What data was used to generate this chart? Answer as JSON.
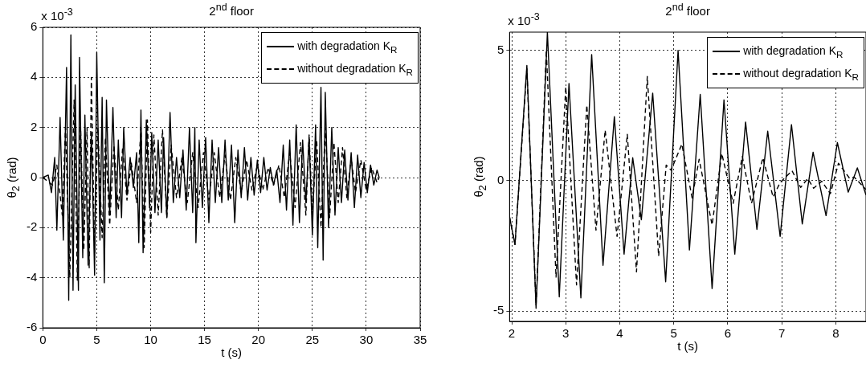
{
  "chart_data": [
    {
      "type": "line",
      "title": "2$^{nd}$ floor",
      "xlabel": "t (s)",
      "ylabel": "θ$_{2}$ (rad)",
      "annotations": [
        "x 10$^{-3}$"
      ],
      "xlim": [
        0,
        35
      ],
      "ylim": [
        -6,
        6
      ],
      "xticks": [
        0,
        5,
        10,
        15,
        20,
        25,
        30,
        35
      ],
      "yticks": [
        -6,
        -4,
        -2,
        0,
        2,
        4,
        6
      ],
      "grid": true,
      "legend": "top right",
      "series": [
        {
          "name": "with degradation K$_{R}$",
          "color": "#000000",
          "line_style": "solid",
          "x": [
            0,
            0.5,
            0.8,
            1.1,
            1.3,
            1.6,
            1.9,
            2.2,
            2.4,
            2.6,
            2.8,
            3.0,
            3.3,
            3.4,
            3.7,
            3.9,
            4.2,
            4.5,
            4.8,
            5.0,
            5.3,
            5.5,
            5.7,
            5.9,
            6.2,
            6.5,
            6.8,
            7.0,
            7.3,
            7.5,
            7.8,
            8.1,
            8.4,
            8.7,
            8.9,
            9.1,
            9.3,
            9.6,
            9.9,
            10.1,
            10.4,
            10.7,
            11.0,
            11.2,
            11.5,
            11.8,
            12.1,
            12.4,
            12.7,
            13.0,
            13.3,
            13.6,
            13.9,
            14.1,
            14.2,
            14.5,
            14.8,
            15.1,
            15.4,
            15.7,
            16.0,
            16.3,
            16.6,
            16.9,
            17.2,
            17.5,
            17.8,
            18.1,
            18.4,
            18.7,
            19.0,
            19.3,
            19.6,
            19.9,
            20.2,
            20.5,
            20.8,
            21.1,
            21.4,
            21.7,
            22.0,
            22.3,
            22.6,
            22.9,
            23.2,
            23.5,
            23.8,
            24.1,
            24.4,
            24.7,
            25.0,
            25.3,
            25.5,
            25.8,
            26.0,
            26.2,
            26.5,
            26.8,
            27.1,
            27.4,
            27.7,
            28.0,
            28.3,
            28.6,
            28.9,
            29.2,
            29.5,
            29.8,
            30.1,
            30.4,
            30.7,
            31.0,
            31.2
          ],
          "values": [
            0,
            0.1,
            -0.6,
            0.8,
            -2.1,
            2.4,
            -2.5,
            4.4,
            -4.9,
            5.7,
            -4.5,
            3.7,
            -4.5,
            4.8,
            -3.2,
            2.5,
            -3.5,
            1.8,
            -3.9,
            5.0,
            -2.5,
            3.2,
            -4.2,
            3.1,
            -1.5,
            2.8,
            -1.6,
            1.5,
            -1.6,
            2.0,
            -0.7,
            0.8,
            -0.4,
            1.0,
            -2.6,
            2.7,
            -3.0,
            2.3,
            -1.2,
            1.8,
            -1.4,
            1.5,
            -1.4,
            1.6,
            -1.6,
            2.6,
            -1.0,
            0.8,
            -0.8,
            1.1,
            -1.3,
            2.0,
            -1.4,
            2.0,
            -2.6,
            1.5,
            -1.2,
            1.6,
            -1.8,
            1.5,
            -1.0,
            1.2,
            -1.0,
            1.5,
            -0.9,
            1.3,
            -1.8,
            1.1,
            -0.8,
            1.2,
            -0.9,
            0.8,
            -0.7,
            0.7,
            -0.6,
            0.8,
            -0.5,
            0.4,
            -0.3,
            0.3,
            -1.0,
            1.3,
            -1.3,
            1.5,
            -1.9,
            2.1,
            -1.8,
            1.5,
            -1.0,
            1.6,
            -2.3,
            2.1,
            -2.8,
            3.6,
            -3.3,
            3.4,
            -2.0,
            2.0,
            -1.5,
            1.2,
            -1.0,
            1.1,
            -0.9,
            1.0,
            -1.2,
            0.9,
            -0.8,
            0.6,
            -0.6,
            0.5,
            -0.3,
            0.3,
            0
          ]
        },
        {
          "name": "without degradation K$_{R}$",
          "color": "#000000",
          "line_style": "dashed",
          "x": [
            0,
            0.9,
            1.3,
            1.8,
            2.1,
            2.5,
            2.9,
            3.2,
            3.5,
            3.8,
            4.1,
            4.3,
            4.5,
            4.8,
            5.1,
            5.5,
            5.8,
            6.2,
            6.6,
            7.0,
            7.4,
            7.8,
            8.2,
            8.7,
            9.1,
            9.4,
            9.7,
            10.0,
            10.3,
            10.7,
            11.1,
            11.5,
            11.9,
            12.4,
            12.9,
            13.4,
            13.9,
            14.4,
            14.9,
            15.4,
            15.9,
            16.4,
            16.9,
            17.4,
            17.9,
            18.4,
            18.9,
            19.4,
            19.9,
            20.4,
            20.9,
            21.4,
            21.9,
            22.4,
            22.9,
            23.4,
            23.9,
            24.4,
            24.7,
            25.0,
            25.4,
            25.8,
            26.2,
            26.6,
            27.0,
            27.4,
            27.8,
            28.2,
            28.6,
            29.0,
            29.5,
            30.0,
            30.5,
            31.0,
            31.2
          ],
          "values": [
            0,
            -0.3,
            0.5,
            -1.5,
            2.0,
            -4.0,
            3.1,
            -4.1,
            2.0,
            -2.9,
            2.0,
            -3.6,
            4.0,
            -3.0,
            2.0,
            -2.4,
            1.6,
            -1.9,
            1.3,
            -1.3,
            1.2,
            -0.9,
            0.6,
            -1.0,
            2.0,
            -2.8,
            2.3,
            -2.2,
            1.7,
            -1.5,
            1.9,
            -1.6,
            1.3,
            -0.8,
            0.8,
            -1.0,
            1.0,
            -1.2,
            1.0,
            -0.9,
            1.0,
            -0.8,
            0.9,
            -0.9,
            0.8,
            -0.6,
            0.7,
            -0.5,
            0.5,
            -0.5,
            0.4,
            -0.3,
            0.5,
            -0.8,
            1.0,
            -1.2,
            1.4,
            -1.5,
            1.7,
            -1.5,
            1.5,
            -2.0,
            2.0,
            -1.6,
            1.4,
            -1.0,
            1.2,
            -0.8,
            0.8,
            -0.6,
            0.7,
            -0.5,
            0.4,
            -0.2,
            0
          ]
        }
      ]
    },
    {
      "type": "line",
      "title": "2$^{nd}$ floor",
      "xlabel": "t (s)",
      "ylabel": "θ$_{2}$ (rad)",
      "annotations": [
        "x 10$^{-3}$"
      ],
      "xlim": [
        1.96,
        8.56
      ],
      "ylim": [
        -5.4,
        5.7
      ],
      "xticks": [
        2,
        3,
        4,
        5,
        6,
        7,
        8
      ],
      "yticks": [
        -5,
        0,
        5
      ],
      "grid": true,
      "legend": "top right",
      "series": [
        {
          "name": "with degradation K$_{R}$",
          "color": "#000000",
          "line_style": "solid",
          "x": [
            1.96,
            2.06,
            2.28,
            2.45,
            2.66,
            2.88,
            3.06,
            3.28,
            3.48,
            3.69,
            3.9,
            4.08,
            4.24,
            4.4,
            4.61,
            4.85,
            5.08,
            5.29,
            5.49,
            5.71,
            5.93,
            6.13,
            6.33,
            6.54,
            6.74,
            6.97,
            7.18,
            7.38,
            7.58,
            7.82,
            8.03,
            8.23,
            8.4,
            8.56
          ],
          "values": [
            -1.4,
            -2.45,
            4.42,
            -4.9,
            5.7,
            -4.46,
            3.73,
            -4.5,
            4.84,
            -3.25,
            2.46,
            -2.82,
            0.88,
            -1.5,
            3.36,
            -3.88,
            5.0,
            -2.66,
            3.31,
            -4.14,
            3.1,
            -2.82,
            2.25,
            -1.87,
            1.9,
            -2.14,
            2.15,
            -1.66,
            1.09,
            -1.34,
            1.46,
            -0.44,
            0.49,
            -0.55
          ]
        },
        {
          "name": "without degradation K$_{R}$",
          "color": "#000000",
          "line_style": "dashed",
          "x": [
            1.96,
            2.06,
            2.28,
            2.45,
            2.64,
            2.82,
            3.0,
            3.2,
            3.39,
            3.56,
            3.73,
            3.95,
            4.14,
            4.31,
            4.51,
            4.72,
            4.86,
            4.95,
            5.15,
            5.34,
            5.47,
            5.71,
            5.89,
            6.1,
            6.27,
            6.44,
            6.65,
            6.84,
            6.97,
            7.19,
            7.35,
            7.48,
            7.59,
            7.74,
            7.9,
            8.05,
            8.26,
            8.34,
            8.56
          ],
          "values": [
            -1.4,
            -2.45,
            4.3,
            -4.8,
            5.0,
            -3.7,
            3.6,
            -4.0,
            2.9,
            -1.9,
            1.94,
            -2.14,
            1.78,
            -3.5,
            4.0,
            -2.9,
            0.6,
            0.4,
            1.4,
            -0.66,
            0.82,
            -1.7,
            1.04,
            -0.87,
            0.93,
            -0.87,
            0.88,
            -0.63,
            -0.07,
            0.38,
            -0.26,
            0.08,
            -0.29,
            -0.02,
            -0.5,
            0.67,
            0.08,
            0.14,
            -0.34
          ]
        }
      ]
    }
  ]
}
